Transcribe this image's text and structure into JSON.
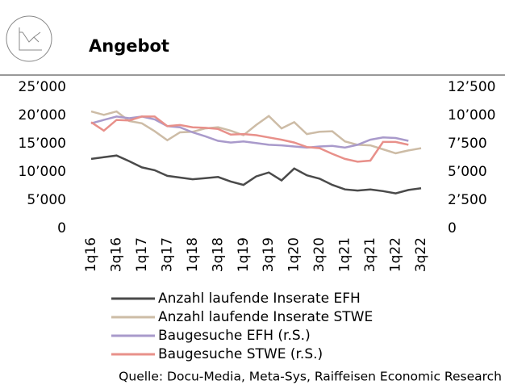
{
  "chart_data": {
    "type": "line",
    "title": "Angebot",
    "source": "Quelle: Docu-Media, Meta-Sys, Raiffeisen Economic Research",
    "categories": [
      "1q16",
      null,
      "3q16",
      null,
      "1q17",
      null,
      "3q17",
      null,
      "1q18",
      null,
      "3q18",
      null,
      "1q19",
      null,
      "3q19",
      null,
      "1q20",
      null,
      "3q20",
      null,
      "1q21",
      null,
      "3q21",
      null,
      "1q22",
      null,
      "3q22"
    ],
    "series": [
      {
        "name": "Anzahl laufende Inserate EFH",
        "color": "#4a4a4a",
        "values": [
          12300,
          12600,
          12900,
          11900,
          10800,
          10300,
          9300,
          9000,
          8700,
          8900,
          9100,
          8300,
          7700,
          9200,
          9900,
          8500,
          10600,
          9400,
          8800,
          7700,
          6900,
          6700,
          6900,
          6600,
          6200,
          6800,
          7100
        ]
      },
      {
        "name": "Anzahl laufende Inserate STWE",
        "color": "#cdbca6",
        "values": [
          20700,
          20100,
          20700,
          19000,
          18600,
          17200,
          15600,
          17000,
          17100,
          17700,
          17900,
          17300,
          16500,
          18300,
          19900,
          17700,
          18800,
          16700,
          17100,
          17200,
          15400,
          14800,
          14700,
          14000,
          13300,
          13800,
          14200
        ]
      },
      {
        "name": "Baugesuche EFH (r.S.)",
        "color": "#a99acb",
        "axis": "y2",
        "values": [
          9300,
          9600,
          9900,
          9750,
          9900,
          9650,
          9050,
          8950,
          8500,
          8150,
          7750,
          7600,
          7700,
          7550,
          7400,
          7350,
          7250,
          7150,
          7250,
          7300,
          7150,
          7400,
          7850,
          8050,
          8000,
          7750,
          null
        ]
      },
      {
        "name": "Baugesuche STWE (r.S.)",
        "color": "#e8908a",
        "axis": "y2",
        "values": [
          9400,
          8650,
          9600,
          9550,
          9900,
          9900,
          9050,
          9150,
          8950,
          8900,
          8800,
          8300,
          8350,
          8250,
          8050,
          7850,
          7600,
          7200,
          7100,
          6600,
          6150,
          5900,
          6000,
          7650,
          7650,
          7400,
          null
        ]
      }
    ],
    "ylim": [
      0,
      25000
    ],
    "yticks": [
      0,
      {
        "value": 5000,
        "label": "5’000"
      },
      {
        "value": 10000,
        "label": "10’000"
      },
      {
        "value": 15000,
        "label": "15’000"
      },
      {
        "value": 20000,
        "label": "20’000"
      },
      {
        "value": 25000,
        "label": "25’000"
      }
    ],
    "y2lim": [
      0,
      12500
    ],
    "y2ticks": [
      0,
      {
        "value": 2500,
        "label": "2’500"
      },
      {
        "value": 5000,
        "label": "5’000"
      },
      {
        "value": 7500,
        "label": "7’500"
      },
      {
        "value": 10000,
        "label": "10’000"
      },
      {
        "value": 12500,
        "label": "12’500"
      }
    ]
  }
}
